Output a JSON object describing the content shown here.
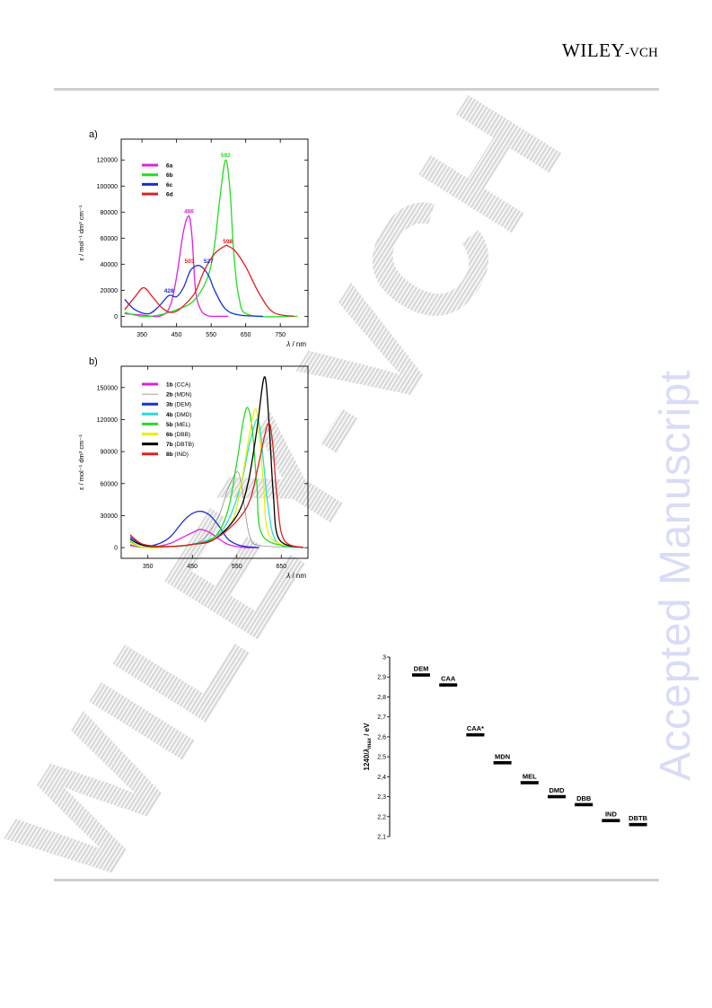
{
  "header": {
    "publisher_main": "WILEY",
    "publisher_sub": "-VCH"
  },
  "side_watermark": "Accepted Manuscript",
  "center_watermark": "WILEY-VCH",
  "chart_data": [
    {
      "type": "line",
      "panel_label": "a)",
      "xlabel_var": "λ",
      "xlabel_unit": " / nm",
      "ylabel": "ε / mol⁻¹ dm³ cm⁻¹",
      "xlim": [
        290,
        830
      ],
      "ylim": [
        -8000,
        136000
      ],
      "xticks": [
        350,
        450,
        550,
        650,
        750
      ],
      "yticks": [
        0,
        20000,
        40000,
        60000,
        80000,
        100000,
        120000
      ],
      "legend_position": "top-left",
      "series": [
        {
          "name": "6a",
          "color": "#e020e0",
          "x": [
            300,
            350,
            400,
            430,
            450,
            470,
            486,
            495,
            505,
            520,
            540,
            560,
            600
          ],
          "y": [
            2000,
            1000,
            0,
            7000,
            30000,
            65000,
            77000,
            60000,
            20000,
            5000,
            500,
            0,
            0
          ]
        },
        {
          "name": "6b",
          "color": "#22dd22",
          "x": [
            300,
            350,
            400,
            450,
            500,
            540,
            560,
            575,
            592,
            605,
            615,
            630,
            660,
            800
          ],
          "y": [
            3000,
            0,
            1000,
            5000,
            12000,
            30000,
            55000,
            90000,
            120000,
            95000,
            50000,
            15000,
            1000,
            0
          ]
        },
        {
          "name": "6c",
          "color": "#1a2fd0",
          "x": [
            300,
            330,
            370,
            400,
            428,
            450,
            470,
            490,
            510,
            527,
            545,
            560,
            590,
            630,
            700
          ],
          "y": [
            13000,
            5000,
            2000,
            8000,
            16000,
            15000,
            22000,
            35000,
            39000,
            37000,
            30000,
            20000,
            6000,
            1000,
            0
          ]
        },
        {
          "name": "6d",
          "color": "#e02020",
          "x": [
            300,
            330,
            355,
            380,
            410,
            440,
            470,
            503,
            530,
            560,
            590,
            598,
            620,
            650,
            690,
            730,
            790
          ],
          "y": [
            5000,
            15000,
            22000,
            15000,
            6000,
            3000,
            8000,
            18000,
            35000,
            48000,
            54000,
            54000,
            50000,
            38000,
            17000,
            3000,
            0
          ]
        }
      ],
      "peak_labels": [
        {
          "text": "486",
          "x": 486,
          "y": 77000,
          "color": "#e020e0"
        },
        {
          "text": "592",
          "x": 592,
          "y": 120000,
          "color": "#22dd22"
        },
        {
          "text": "428",
          "x": 428,
          "y": 16000,
          "color": "#1a2fd0"
        },
        {
          "text": "503",
          "x": 503,
          "y": 39000,
          "color": "#e02020"
        },
        {
          "text": "527",
          "x": 527,
          "y": 39000,
          "color": "#1a2fd0"
        },
        {
          "text": "598",
          "x": 598,
          "y": 54000,
          "color": "#e02020"
        }
      ]
    },
    {
      "type": "line",
      "panel_label": "b)",
      "xlabel_var": "λ",
      "xlabel_unit": " / nm",
      "ylabel": "ε / mol⁻¹ dm³ cm⁻¹",
      "xlim": [
        290,
        710
      ],
      "ylim": [
        -10000,
        170000
      ],
      "xticks": [
        350,
        450,
        550,
        650
      ],
      "yticks": [
        0,
        30000,
        60000,
        90000,
        120000,
        150000
      ],
      "legend_position": "top-left",
      "series": [
        {
          "name": "1b",
          "suffix": "(CCA)",
          "color": "#e020e0",
          "x": [
            310,
            340,
            370,
            400,
            430,
            460,
            470,
            490,
            510,
            530,
            550,
            570,
            600
          ],
          "y": [
            2000,
            0,
            1000,
            4000,
            10000,
            16000,
            17000,
            14000,
            8000,
            3000,
            1000,
            0,
            0
          ]
        },
        {
          "name": "2b",
          "suffix": "(MDN)",
          "color": "#808080",
          "x": [
            310,
            340,
            400,
            450,
            480,
            510,
            530,
            550,
            560,
            570,
            580,
            600,
            700
          ],
          "y": [
            3000,
            0,
            1000,
            3000,
            10000,
            30000,
            55000,
            71000,
            60000,
            30000,
            10000,
            2000,
            0
          ]
        },
        {
          "name": "3b",
          "suffix": "(DEM)",
          "color": "#1a2fd0",
          "x": [
            310,
            340,
            370,
            400,
            430,
            450,
            470,
            490,
            510,
            530,
            550,
            570,
            600
          ],
          "y": [
            10000,
            2000,
            3000,
            10000,
            25000,
            32000,
            34000,
            30000,
            20000,
            8000,
            3000,
            1000,
            0
          ]
        },
        {
          "name": "4b",
          "suffix": "(DMD)",
          "color": "#22dddd",
          "x": [
            310,
            340,
            400,
            450,
            500,
            530,
            560,
            580,
            598,
            610,
            620,
            640,
            700
          ],
          "y": [
            5000,
            0,
            1000,
            3000,
            10000,
            25000,
            60000,
            100000,
            120000,
            80000,
            40000,
            5000,
            0
          ]
        },
        {
          "name": "5b",
          "suffix": "(MEL)",
          "color": "#22dd22",
          "x": [
            310,
            340,
            400,
            450,
            500,
            530,
            550,
            565,
            575,
            585,
            595,
            610,
            700
          ],
          "y": [
            6000,
            0,
            1000,
            3000,
            10000,
            35000,
            80000,
            120000,
            131000,
            110000,
            60000,
            10000,
            0
          ]
        },
        {
          "name": "6b",
          "suffix": "(DBB)",
          "color": "#eeee00",
          "x": [
            310,
            340,
            400,
            450,
            500,
            540,
            560,
            580,
            592,
            600,
            610,
            625,
            700
          ],
          "y": [
            5000,
            0,
            1000,
            3000,
            8000,
            25000,
            60000,
            110000,
            130000,
            110000,
            60000,
            10000,
            0
          ]
        },
        {
          "name": "7b",
          "suffix": "(DBTB)",
          "color": "#000000",
          "x": [
            310,
            340,
            400,
            450,
            500,
            550,
            575,
            595,
            612,
            622,
            632,
            645,
            700
          ],
          "y": [
            8000,
            2000,
            1000,
            3000,
            8000,
            30000,
            60000,
            110000,
            160000,
            120000,
            50000,
            8000,
            0
          ]
        },
        {
          "name": "8b",
          "suffix": "(IND)",
          "color": "#e02020",
          "x": [
            310,
            340,
            400,
            450,
            500,
            550,
            580,
            600,
            620,
            630,
            640,
            655,
            700
          ],
          "y": [
            12000,
            3000,
            1000,
            3000,
            8000,
            25000,
            45000,
            80000,
            116000,
            100000,
            50000,
            8000,
            0
          ]
        }
      ]
    },
    {
      "type": "scatter",
      "ylabel_main": "1240/",
      "ylabel_var": "λ",
      "ylabel_sub": "max",
      "ylabel_unit": " / eV",
      "ylim": [
        2.1,
        3.0
      ],
      "yticks": [
        "3",
        "2,9",
        "2,8",
        "2,7",
        "2,6",
        "2,5",
        "2,4",
        "2,3",
        "2,2",
        "2,1"
      ],
      "ytick_values": [
        3.0,
        2.9,
        2.8,
        2.7,
        2.6,
        2.5,
        2.4,
        2.3,
        2.2,
        2.1
      ],
      "categories": [
        "DEM",
        "CAA",
        "CAA*",
        "MDN",
        "MEL",
        "DMD",
        "DBB",
        "IND",
        "DBTB"
      ],
      "values": [
        2.91,
        2.86,
        2.61,
        2.47,
        2.37,
        2.3,
        2.26,
        2.18,
        2.16
      ]
    }
  ]
}
